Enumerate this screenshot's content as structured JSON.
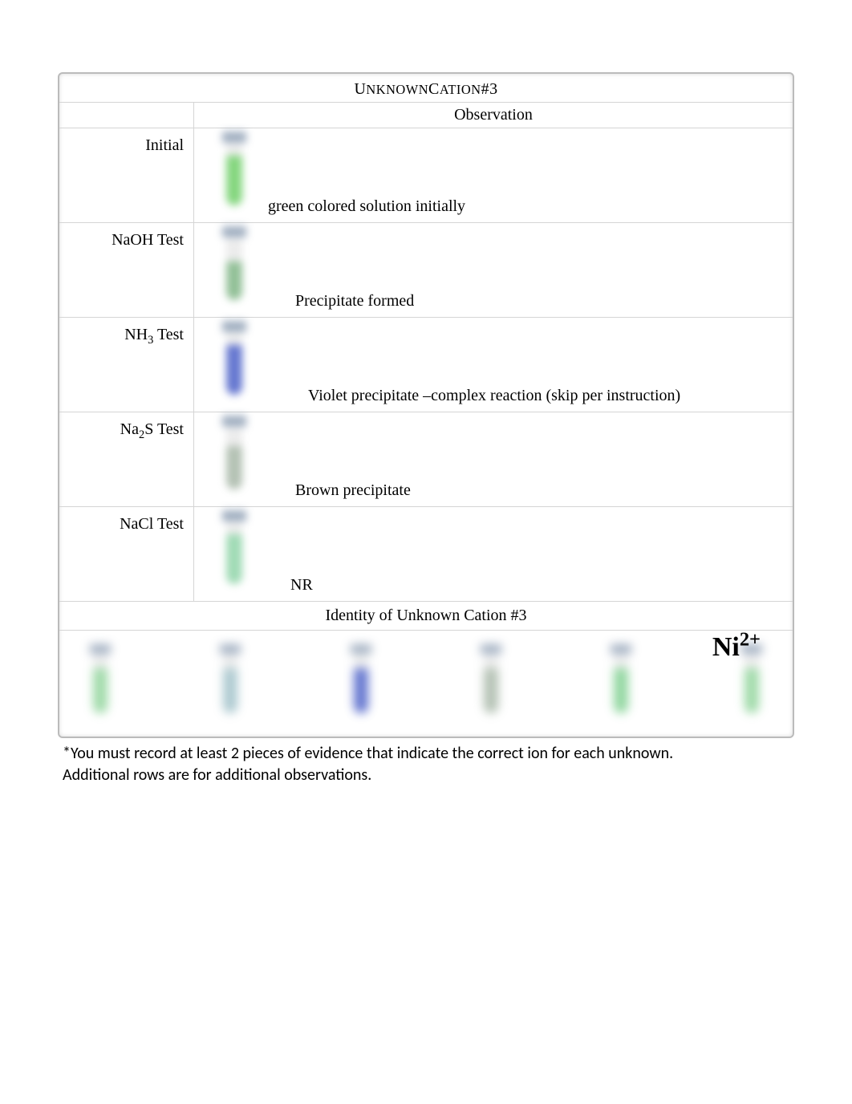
{
  "title_prefix": "U",
  "title_word1": "NKNOWN",
  "title_word2_prefix": "C",
  "title_word2": "ATION",
  "title_suffix": "#3",
  "header_observation": "Observation",
  "rows": [
    {
      "label": "Initial",
      "observation": "green colored solution initially",
      "liquid_color": "#6fcf68",
      "liquid_height": 62
    },
    {
      "label_html": "NaOH Test",
      "observation": "Precipitate formed",
      "liquid_color": "#7fb585",
      "liquid_height": 48,
      "indent": "indent3"
    },
    {
      "label_html": "NH<sub>3</sub> Test",
      "observation": "Violet precipitate –complex reaction (skip per instruction)",
      "liquid_color": "#4b60c8",
      "liquid_height": 62,
      "indent": "indent2"
    },
    {
      "label_html": "Na<sub>2</sub>S Test",
      "observation": "Brown precipitate",
      "liquid_color": "#a7b7a7",
      "liquid_height": 54,
      "indent": "indent3"
    },
    {
      "label_html": "NaCl Test",
      "observation": "NR",
      "liquid_color": "#8fd4a8",
      "liquid_height": 62,
      "indent": "indent4"
    }
  ],
  "identity_label": "Identity of Unknown Cation #3",
  "identity_value_html": "Ni<sup>2+</sup>",
  "strip_colors": [
    "#8fd49a",
    "#9fc0c8",
    "#4b60c8",
    "#a7b7a7",
    "#7fd090",
    "#8fd49a"
  ],
  "note_line1": "*You must record at least 2 pieces of evidence that indicate the correct ion for each unknown.",
  "note_line2": "Additional rows are for additional observations.",
  "colors": {
    "page_bg": "#ffffff",
    "border": "#bbbbbb",
    "divider": "#d5d5d5",
    "text": "#000000",
    "cap": "#8fa0b5",
    "tube_body": "#e8e8e8"
  }
}
